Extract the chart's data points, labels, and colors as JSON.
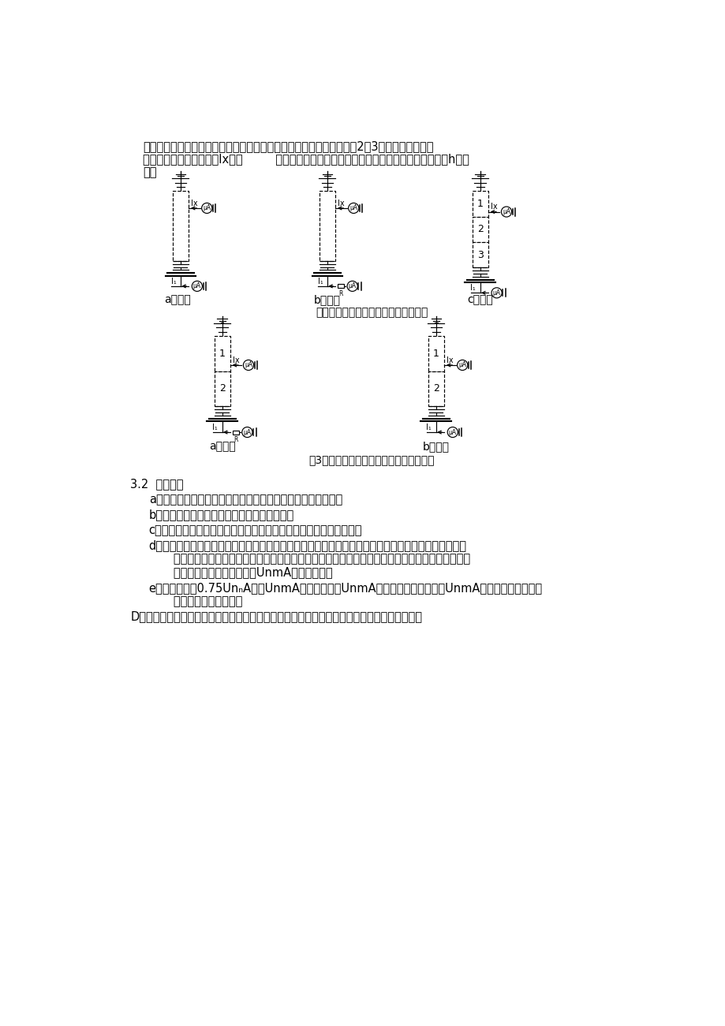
{
  "page_width": 9.2,
  "page_height": 13.01,
  "dpi": 100,
  "background": "#ffffff",
  "ml": 0.85,
  "fs_body": 10.5,
  "lh": 0.22,
  "paragraph1_line1": "两节及以上串联结构避雷器可采用不拆高压引线试验，典型接线图（图2图3）中直流高压输出",
  "paragraph1_line2": "端串接微安表（读数记为Ix），         低压端直接微安表或串接限流电阻后接微安表（读数记为h）接",
  "paragraph1_line3": "地。",
  "three_sect_label": "三节结构金属氧化物避雷器测试接线图",
  "fig3_caption": "图3两节结构金属氧化物避雷器测试接线图",
  "section32_title": "3.2  试验步骤",
  "step_a": "a）进行测试仪器过压整定并检验仪器在整定值能否可靠动作。",
  "step_b": "b）清洁避雷器或限压器表面，进行试验接线。",
  "step_c": "c）检查试验接线，确认电压输出在零位，接通试验电源，进行升压。",
  "step_d1": "d）升压过程中，监视泄漏电流（或电流表差值），同时监视试验电压，若电流值上升慢数值小，且试验",
  "step_d2": "   电压已快接近避雷器或限压器参考电压时，应匀速放慢升压，当电流达到厂家规定直流参考电流试",
  "step_d3": "   验值时，读取并记录电压值UnmA，降压至零。",
  "step_e1": "e）重新升压至0.75UnₙA值（UnmA电压值应选用UnmA初始值或制造厂给定的UnmA值），读取并记录泄",
  "step_e2": "   漏电流值，降压至零。",
  "step_D": "D断开试验电源，对被试设备使用专用放电工具按先经电阻放电，后直接放电的程序进行充分放"
}
